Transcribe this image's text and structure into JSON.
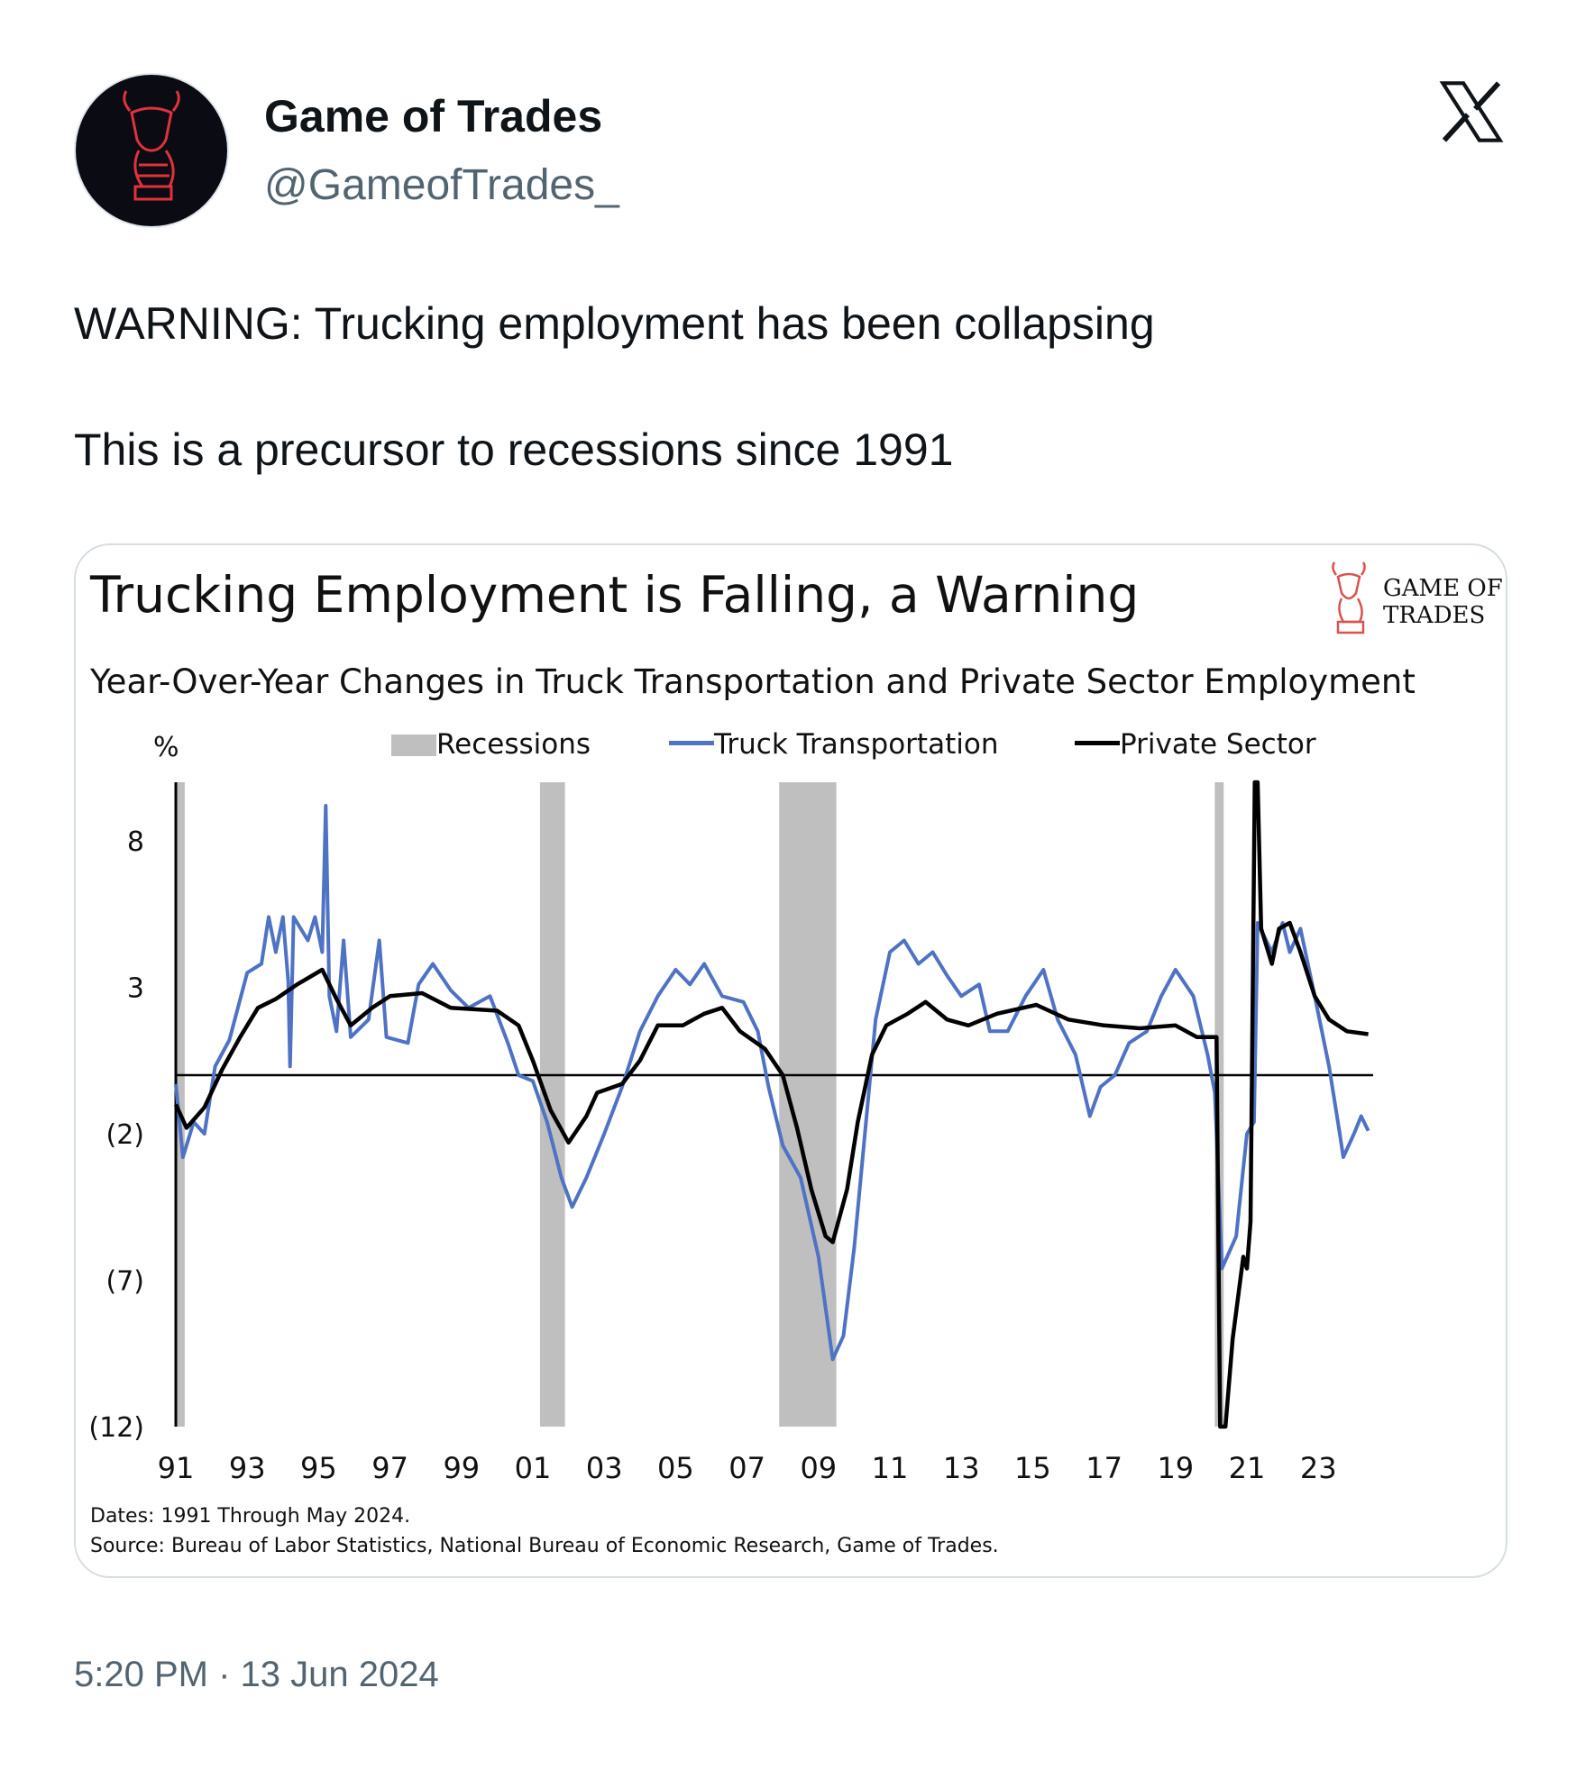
{
  "tweet": {
    "author_name": "Game of Trades",
    "author_handle": "@GameofTrades_",
    "text_line1": "WARNING: Trucking employment has been collapsing",
    "text_line2": "This is a precursor to recessions since 1991",
    "timestamp": "5:20 PM · 13 Jun 2024",
    "platform_icon": "x-logo-icon"
  },
  "chart_card": {
    "logo_text_line1": "GAME OF",
    "logo_text_line2": "TRADES",
    "dates_note": "Dates: 1991 Through May 2024.",
    "source_note": "Source: Bureau of Labor Statistics, National Bureau of Economic Research, Game of Trades."
  },
  "colors": {
    "truck": "#4f72c4",
    "private": "#000000",
    "recession": "#bfbfbf"
  },
  "chart_data": {
    "type": "line",
    "title": "Trucking Employment is Falling, a Warning",
    "subtitle": "Year-Over-Year Changes in Truck Transportation and Private Sector Employment",
    "ylabel": "%",
    "xlabel": "",
    "ylim": [
      -12,
      10
    ],
    "xlim": [
      1991,
      2024.5
    ],
    "yticks": [
      8,
      3,
      -2,
      -7,
      -12
    ],
    "ytick_labels": [
      "8",
      "3",
      "(2)",
      "(7)",
      "(12)"
    ],
    "xticks": [
      1991,
      1993,
      1995,
      1997,
      1999,
      2001,
      2003,
      2005,
      2007,
      2009,
      2011,
      2013,
      2015,
      2017,
      2019,
      2021,
      2023
    ],
    "xtick_labels": [
      "91",
      "93",
      "95",
      "97",
      "99",
      "01",
      "03",
      "05",
      "07",
      "09",
      "11",
      "13",
      "15",
      "17",
      "19",
      "21",
      "23"
    ],
    "legend": {
      "placement": "top",
      "recessions": "Recessions",
      "truck": "Truck Transportation",
      "private": "Private Sector"
    },
    "grid": false,
    "recessions": [
      [
        1991.0,
        1991.25
      ],
      [
        2001.2,
        2001.9
      ],
      [
        2007.9,
        2009.5
      ],
      [
        2020.1,
        2020.35
      ]
    ],
    "series": [
      {
        "name": "Truck Transportation",
        "points": [
          [
            1991.0,
            -0.3
          ],
          [
            1991.2,
            -2.8
          ],
          [
            1991.5,
            -1.6
          ],
          [
            1991.8,
            -2
          ],
          [
            1992.1,
            0.3
          ],
          [
            1992.5,
            1.2
          ],
          [
            1993.0,
            3.5
          ],
          [
            1993.4,
            3.8
          ],
          [
            1993.6,
            5.4
          ],
          [
            1993.8,
            4.2
          ],
          [
            1994.0,
            5.4
          ],
          [
            1994.15,
            3.2
          ],
          [
            1994.2,
            0.3
          ],
          [
            1994.3,
            5.4
          ],
          [
            1994.7,
            4.6
          ],
          [
            1994.9,
            5.4
          ],
          [
            1995.1,
            4.2
          ],
          [
            1995.2,
            9.2
          ],
          [
            1995.3,
            2.7
          ],
          [
            1995.5,
            1.5
          ],
          [
            1995.7,
            4.6
          ],
          [
            1995.9,
            1.3
          ],
          [
            1996.4,
            1.9
          ],
          [
            1996.7,
            4.6
          ],
          [
            1996.9,
            1.3
          ],
          [
            1997.5,
            1.1
          ],
          [
            1997.8,
            3.1
          ],
          [
            1998.2,
            3.8
          ],
          [
            1998.7,
            2.9
          ],
          [
            1999.2,
            2.3
          ],
          [
            1999.8,
            2.7
          ],
          [
            2000.3,
            1.1
          ],
          [
            2000.6,
            0
          ],
          [
            2001.0,
            -0.2
          ],
          [
            2001.4,
            -1.6
          ],
          [
            2001.8,
            -3.5
          ],
          [
            2002.1,
            -4.5
          ],
          [
            2002.5,
            -3.5
          ],
          [
            2003.0,
            -2
          ],
          [
            2003.5,
            -0.4
          ],
          [
            2004.0,
            1.5
          ],
          [
            2004.5,
            2.7
          ],
          [
            2005.0,
            3.6
          ],
          [
            2005.4,
            3.1
          ],
          [
            2005.8,
            3.8
          ],
          [
            2006.3,
            2.7
          ],
          [
            2006.9,
            2.5
          ],
          [
            2007.3,
            1.5
          ],
          [
            2007.6,
            -0.4
          ],
          [
            2008.0,
            -2.4
          ],
          [
            2008.5,
            -3.5
          ],
          [
            2009.0,
            -6.2
          ],
          [
            2009.4,
            -9.7
          ],
          [
            2009.7,
            -8.9
          ],
          [
            2010.0,
            -5.9
          ],
          [
            2010.3,
            -2
          ],
          [
            2010.6,
            1.9
          ],
          [
            2011.0,
            4.2
          ],
          [
            2011.4,
            4.6
          ],
          [
            2011.8,
            3.8
          ],
          [
            2012.2,
            4.2
          ],
          [
            2012.6,
            3.4
          ],
          [
            2013.0,
            2.7
          ],
          [
            2013.5,
            3.1
          ],
          [
            2013.8,
            1.5
          ],
          [
            2014.3,
            1.5
          ],
          [
            2014.8,
            2.7
          ],
          [
            2015.3,
            3.6
          ],
          [
            2015.7,
            1.9
          ],
          [
            2016.2,
            0.7
          ],
          [
            2016.6,
            -1.4
          ],
          [
            2016.9,
            -0.4
          ],
          [
            2017.3,
            0
          ],
          [
            2017.7,
            1.1
          ],
          [
            2018.2,
            1.5
          ],
          [
            2018.6,
            2.7
          ],
          [
            2019.0,
            3.6
          ],
          [
            2019.5,
            2.7
          ],
          [
            2019.9,
            0.7
          ],
          [
            2020.1,
            -0.6
          ],
          [
            2020.3,
            -6.6
          ],
          [
            2020.7,
            -5.5
          ],
          [
            2021.0,
            -2
          ],
          [
            2021.2,
            -1.6
          ],
          [
            2021.3,
            5.2
          ],
          [
            2021.7,
            4.2
          ],
          [
            2022.0,
            5.2
          ],
          [
            2022.2,
            4.2
          ],
          [
            2022.5,
            5
          ],
          [
            2022.9,
            2.7
          ],
          [
            2023.3,
            0.3
          ],
          [
            2023.6,
            -2
          ],
          [
            2023.7,
            -2.8
          ],
          [
            2024.0,
            -2
          ],
          [
            2024.2,
            -1.4
          ],
          [
            2024.4,
            -1.9
          ]
        ]
      },
      {
        "name": "Private Sector",
        "points": [
          [
            1991.0,
            -1
          ],
          [
            1991.3,
            -1.8
          ],
          [
            1991.8,
            -1.1
          ],
          [
            1992.3,
            0.2
          ],
          [
            1992.8,
            1.3
          ],
          [
            1993.3,
            2.3
          ],
          [
            1993.8,
            2.6
          ],
          [
            1994.4,
            3.1
          ],
          [
            1995.1,
            3.6
          ],
          [
            1995.5,
            2.6
          ],
          [
            1995.9,
            1.7
          ],
          [
            1996.5,
            2.3
          ],
          [
            1997.0,
            2.7
          ],
          [
            1997.9,
            2.8
          ],
          [
            1998.7,
            2.3
          ],
          [
            2000.0,
            2.2
          ],
          [
            2000.6,
            1.7
          ],
          [
            2001.0,
            0.5
          ],
          [
            2001.5,
            -1.2
          ],
          [
            2002.0,
            -2.3
          ],
          [
            2002.5,
            -1.4
          ],
          [
            2002.8,
            -0.6
          ],
          [
            2003.5,
            -0.3
          ],
          [
            2004.0,
            0.5
          ],
          [
            2004.5,
            1.7
          ],
          [
            2005.2,
            1.7
          ],
          [
            2005.8,
            2.1
          ],
          [
            2006.3,
            2.3
          ],
          [
            2006.8,
            1.5
          ],
          [
            2007.5,
            0.9
          ],
          [
            2008.0,
            0
          ],
          [
            2008.4,
            -1.8
          ],
          [
            2008.8,
            -3.9
          ],
          [
            2009.2,
            -5.5
          ],
          [
            2009.4,
            -5.7
          ],
          [
            2009.8,
            -3.9
          ],
          [
            2010.1,
            -1.6
          ],
          [
            2010.5,
            0.7
          ],
          [
            2010.9,
            1.7
          ],
          [
            2011.5,
            2.1
          ],
          [
            2012.0,
            2.5
          ],
          [
            2012.6,
            1.9
          ],
          [
            2013.2,
            1.7
          ],
          [
            2014.0,
            2.1
          ],
          [
            2015.1,
            2.4
          ],
          [
            2016.0,
            1.9
          ],
          [
            2017.0,
            1.7
          ],
          [
            2018.0,
            1.6
          ],
          [
            2019.0,
            1.7
          ],
          [
            2019.6,
            1.3
          ],
          [
            2020.15,
            1.3
          ],
          [
            2020.25,
            -12
          ],
          [
            2020.4,
            -12
          ],
          [
            2020.6,
            -9
          ],
          [
            2020.9,
            -6.2
          ],
          [
            2021.0,
            -6.6
          ],
          [
            2021.1,
            -5
          ],
          [
            2021.22,
            10
          ],
          [
            2021.3,
            10
          ],
          [
            2021.4,
            5
          ],
          [
            2021.7,
            3.8
          ],
          [
            2021.9,
            5
          ],
          [
            2022.2,
            5.2
          ],
          [
            2022.5,
            4.2
          ],
          [
            2022.9,
            2.7
          ],
          [
            2023.3,
            1.9
          ],
          [
            2023.8,
            1.5
          ],
          [
            2024.4,
            1.4
          ]
        ]
      }
    ],
    "footnotes": [
      "Dates: 1991 Through May 2024.",
      "Source: Bureau of Labor Statistics, National Bureau of Economic Research, Game of Trades."
    ]
  }
}
